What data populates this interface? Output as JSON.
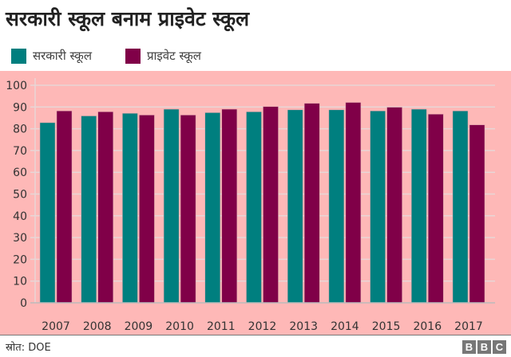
{
  "chart_data": {
    "type": "bar",
    "title": "सरकारी स्कूल बनाम प्राइवेट स्कूल",
    "categories": [
      "2007",
      "2008",
      "2009",
      "2010",
      "2011",
      "2012",
      "2013",
      "2014",
      "2015",
      "2016",
      "2017"
    ],
    "series": [
      {
        "name": "सरकारी स्कूल",
        "color": "#007f7f",
        "values": [
          82.8,
          85.9,
          87.1,
          89.0,
          87.4,
          87.8,
          88.7,
          88.7,
          88.2,
          89.0,
          88.2
        ]
      },
      {
        "name": "प्राइवेट स्कूल",
        "color": "#800048",
        "values": [
          88.2,
          87.8,
          86.3,
          86.3,
          89.0,
          90.2,
          91.7,
          92.1,
          89.9,
          86.7,
          81.8
        ]
      }
    ],
    "ylim": [
      0,
      100
    ],
    "yticks": [
      "0",
      "10",
      "20",
      "30",
      "40",
      "50",
      "60",
      "70",
      "80",
      "90",
      "100"
    ],
    "xlabel": "",
    "ylabel": "",
    "grid": true,
    "legend": "top-left"
  },
  "footer": {
    "source": "स्रोत: DOE",
    "logo": [
      "B",
      "B",
      "C"
    ]
  }
}
